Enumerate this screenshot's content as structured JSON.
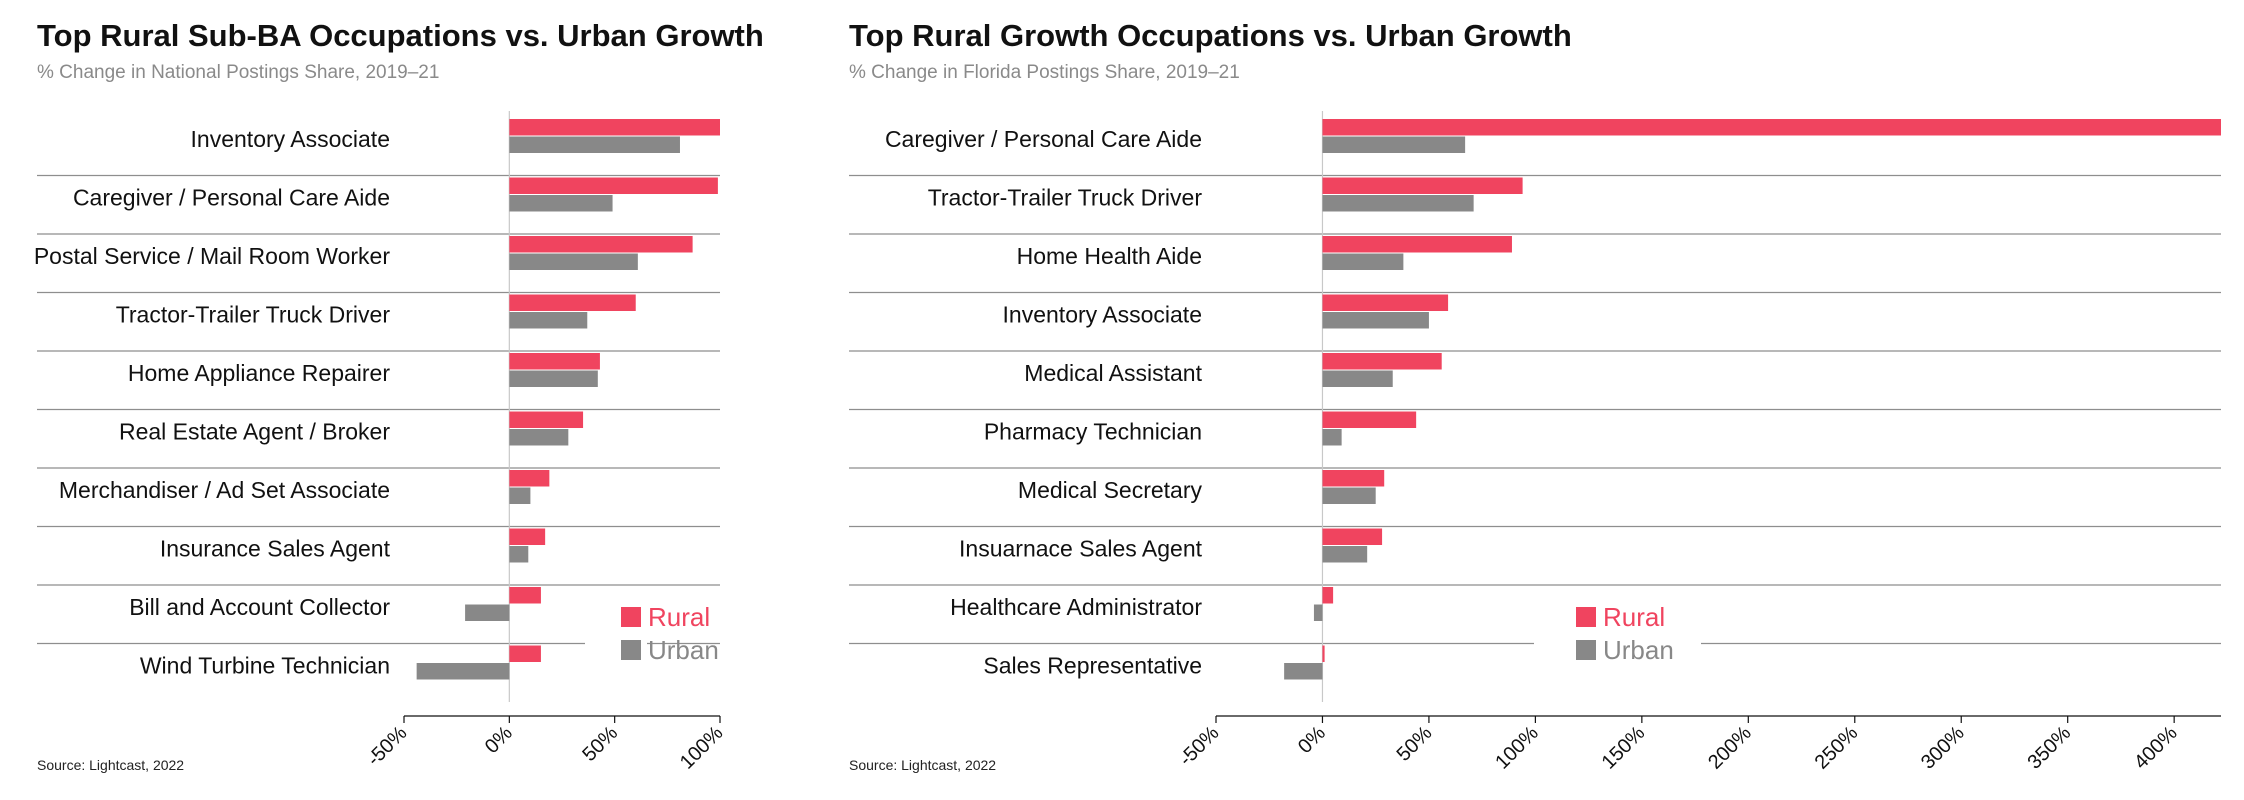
{
  "source": "Source: Lightcast, 2022",
  "colors": {
    "rural": "#f0445f",
    "urban": "#888888",
    "rule": "#8e8e8e"
  },
  "chart_data": [
    {
      "type": "bar",
      "orientation": "horizontal",
      "title": "Top Rural Sub-BA Occupations vs. Urban Growth",
      "subtitle": "% Change in National Postings Share, 2019–21",
      "categories": [
        "Inventory Associate",
        "Caregiver / Personal Care Aide",
        "Postal Service / Mail Room Worker",
        "Tractor-Trailer Truck Driver",
        "Home Appliance Repairer",
        "Real Estate Agent / Broker",
        "Merchandiser / Ad Set Associate",
        "Insurance Sales Agent",
        "Bill and Account Collector",
        "Wind Turbine Technician"
      ],
      "series": [
        {
          "name": "Rural",
          "values": [
            100,
            99,
            87,
            60,
            43,
            35,
            19,
            17,
            15,
            15
          ]
        },
        {
          "name": "Urban",
          "values": [
            81,
            49,
            61,
            37,
            42,
            28,
            10,
            9,
            -21,
            -44
          ]
        }
      ],
      "xlim": [
        -50,
        100
      ],
      "ticks": [
        -50,
        0,
        50,
        100
      ],
      "tick_labels": [
        "-50%",
        "0%",
        "50%",
        "100%"
      ],
      "legend": "bottom-right"
    },
    {
      "type": "bar",
      "orientation": "horizontal",
      "title": "Top Rural Growth Occupations vs. Urban Growth",
      "subtitle": "% Change in Florida Postings Share, 2019–21",
      "categories": [
        "Caregiver / Personal Care Aide",
        "Tractor-Trailer Truck Driver",
        "Home Health Aide",
        "Inventory Associate",
        "Medical Assistant",
        "Pharmacy Technician",
        "Medical Secretary",
        "Insuarnace Sales Agent",
        "Healthcare Administrator",
        "Sales Representative"
      ],
      "series": [
        {
          "name": "Rural",
          "values": [
            422,
            94,
            89,
            59,
            56,
            44,
            29,
            28,
            5,
            1
          ]
        },
        {
          "name": "Urban",
          "values": [
            67,
            71,
            38,
            50,
            33,
            9,
            25,
            21,
            -4,
            -18
          ]
        }
      ],
      "xlim": [
        -50,
        422
      ],
      "ticks": [
        -50,
        0,
        50,
        100,
        150,
        200,
        250,
        300,
        350,
        400
      ],
      "tick_labels": [
        "-50%",
        "0%",
        "50%",
        "100%",
        "150%",
        "200%",
        "250%",
        "300%",
        "350%",
        "400%"
      ],
      "legend": "bottom-center"
    }
  ]
}
